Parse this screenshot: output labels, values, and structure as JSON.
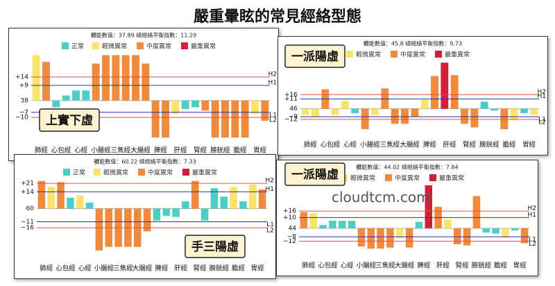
{
  "title": "嚴重暈眩的常見經絡型態",
  "watermark": "cloudtcm.com",
  "chart_data": [
    {
      "type": "bar",
      "subtitle": "體能數值：37.89 總經絡平衡指數：11.29",
      "label": "上實下虛",
      "legend": [
        {
          "name": "正常",
          "color": "#4ecdc4"
        },
        {
          "name": "輕微異常",
          "color": "#f9e36b"
        },
        {
          "name": "中度異常",
          "color": "#f08a3c"
        },
        {
          "name": "嚴重異常",
          "color": "#d0203a"
        }
      ],
      "categories": [
        "肺經",
        null,
        "心包經",
        null,
        "心經",
        null,
        "小腸經",
        null,
        "三焦經",
        null,
        "大腸經",
        null,
        "脾經",
        null,
        "肝經",
        null,
        "腎經",
        null,
        "膀胱經",
        null,
        "膽經",
        null,
        "胃經",
        null
      ],
      "values": [
        65,
        61,
        34,
        41,
        44,
        44,
        60,
        65,
        65,
        65,
        65,
        60,
        16,
        16,
        30,
        33,
        34,
        32,
        16,
        16,
        16,
        16,
        30,
        26
      ],
      "colors": [
        "#f9e36b",
        "#f08a3c",
        "#4ecdc4",
        "#4ecdc4",
        "#4ecdc4",
        "#4ecdc4",
        "#f08a3c",
        "#f08a3c",
        "#f08a3c",
        "#f08a3c",
        "#f08a3c",
        "#f08a3c",
        "#f08a3c",
        "#f08a3c",
        "#f9e36b",
        "#4ecdc4",
        "#4ecdc4",
        "#f08a3c",
        "#f08a3c",
        "#f08a3c",
        "#f08a3c",
        "#f08a3c",
        "#f9e36b",
        "#f08a3c"
      ],
      "ylim": [
        14,
        66
      ],
      "baseline": 38,
      "yticks": [
        {
          "value": 52,
          "label": "+14"
        },
        {
          "value": 47,
          "label": "+9"
        },
        38,
        {
          "value": 31,
          "label": "−7"
        },
        {
          "value": 28,
          "label": "−10"
        }
      ],
      "ref_lines": [
        {
          "value": 52,
          "label": "H2",
          "color": "#e0504a"
        },
        {
          "value": 47,
          "label": "H1",
          "color": "#2233aa"
        },
        {
          "value": 31,
          "label": "L1",
          "color": "#2233aa"
        },
        {
          "value": 28,
          "label": "L2",
          "color": "#e0504a"
        }
      ]
    },
    {
      "type": "bar",
      "subtitle": "體能數值：45.8 總經絡平衡指數：9.73",
      "label": "一派陽虛",
      "legend": [
        {
          "name": "輕微異常",
          "color": "#f9e36b"
        },
        {
          "name": "中度異常",
          "color": "#f08a3c"
        },
        {
          "name": "嚴重異常",
          "color": "#d0203a"
        }
      ],
      "categories": [
        "肺經",
        null,
        "心包經",
        null,
        "心經",
        null,
        "小腸經",
        null,
        "三焦經",
        null,
        "大腸經",
        null,
        "脾經",
        null,
        "肝經",
        null,
        "腎經",
        null,
        "膀胱經",
        null,
        "膽經",
        null,
        "胃經",
        null
      ],
      "values": [
        39,
        37,
        68,
        39,
        55,
        41,
        23,
        39,
        69,
        29,
        29,
        37,
        56,
        83,
        98,
        84,
        29,
        25,
        54,
        44,
        23,
        33,
        41,
        39
      ],
      "colors": [
        "#f9e36b",
        "#f9e36b",
        "#f08a3c",
        "#f9e36b",
        "#f9e36b",
        "#4ecdc4",
        "#f08a3c",
        "#f9e36b",
        "#f08a3c",
        "#f08a3c",
        "#f08a3c",
        "#f08a3c",
        "#f9e36b",
        "#f08a3c",
        "#d0203a",
        "#f08a3c",
        "#f08a3c",
        "#f08a3c",
        "#4ecdc4",
        "#4ecdc4",
        "#f08a3c",
        "#f9e36b",
        "#4ecdc4",
        "#f9e36b"
      ],
      "ylim": [
        16,
        99
      ],
      "baseline": 46,
      "yticks": [
        {
          "value": 62,
          "label": "+16"
        },
        {
          "value": 57,
          "label": "+11"
        },
        46,
        {
          "value": 37,
          "label": "−9"
        },
        {
          "value": 34,
          "label": "−12"
        }
      ],
      "ref_lines": [
        {
          "value": 62,
          "label": "H2",
          "color": "#e0504a"
        },
        {
          "value": 57,
          "label": "H1",
          "color": "#2233aa"
        },
        {
          "value": 37,
          "label": "L1",
          "color": "#2233aa"
        },
        {
          "value": 34,
          "label": "L2",
          "color": "#e0504a"
        }
      ]
    },
    {
      "type": "bar",
      "subtitle": "體能數值：60.22 總經絡平衡指數：7.33",
      "label": "手三陽虛",
      "legend": [
        {
          "name": "正常",
          "color": "#4ecdc4"
        },
        {
          "name": "輕微異常",
          "color": "#f9e36b"
        },
        {
          "name": "中度異常",
          "color": "#f08a3c"
        },
        {
          "name": "嚴重異常",
          "color": "#d0203a"
        }
      ],
      "categories": [
        "肺經",
        null,
        "心包經",
        null,
        "心經",
        null,
        "小腸經",
        null,
        "三焦經",
        null,
        "大腸經",
        null,
        "脾經",
        null,
        "肝經",
        null,
        "腎經",
        null,
        "膀胱經",
        null,
        "膽經",
        null,
        "胃經",
        null
      ],
      "values": [
        83,
        78,
        82,
        69,
        71,
        65,
        25,
        28,
        28,
        28,
        28,
        41,
        50,
        54,
        53,
        66,
        83,
        50,
        77,
        70,
        78,
        66,
        80,
        76
      ],
      "colors": [
        "#f08a3c",
        "#f9e36b",
        "#f08a3c",
        "#4ecdc4",
        "#f9e36b",
        "#4ecdc4",
        "#f08a3c",
        "#f08a3c",
        "#f08a3c",
        "#f08a3c",
        "#f08a3c",
        "#f08a3c",
        "#4ecdc4",
        "#4ecdc4",
        "#4ecdc4",
        "#4ecdc4",
        "#f08a3c",
        "#4ecdc4",
        "#4ecdc4",
        "#4ecdc4",
        "#f9e36b",
        "#4ecdc4",
        "#f9e36b",
        "#f08a3c"
      ],
      "ylim": [
        18,
        84
      ],
      "baseline": 60,
      "yticks": [
        {
          "value": 81,
          "label": "+21"
        },
        {
          "value": 74,
          "label": "+14"
        },
        60,
        {
          "value": 49,
          "label": "−11"
        },
        {
          "value": 44,
          "label": "−16"
        }
      ],
      "ref_lines": [
        {
          "value": 81,
          "label": "H2",
          "color": "#e0504a"
        },
        {
          "value": 74,
          "label": "H1",
          "color": "#2233aa"
        },
        {
          "value": 49,
          "label": "L1",
          "color": "#2233aa"
        },
        {
          "value": 44,
          "label": "L2",
          "color": "#e0504a"
        }
      ]
    },
    {
      "type": "bar",
      "subtitle": "體能數值：44.02 總經絡平衡指數：7.84",
      "label": "一派陽虛",
      "legend": [
        {
          "name": "輕微異常",
          "color": "#f9e36b"
        },
        {
          "name": "中度異常",
          "color": "#f08a3c"
        },
        {
          "name": "嚴重異常",
          "color": "#d0203a"
        }
      ],
      "categories": [
        "肺經",
        null,
        "心包經",
        null,
        "心經",
        null,
        "小腸經",
        null,
        "三焦經",
        null,
        "大腸經",
        null,
        "脾經",
        null,
        "肝經",
        null,
        "腎經",
        null,
        "膀胱經",
        null,
        "膽經",
        null,
        "胃經",
        null
      ],
      "values": [
        59,
        58,
        47,
        51,
        51,
        51,
        27,
        25,
        25,
        26,
        35,
        26,
        50,
        84,
        64,
        52,
        29,
        28,
        74,
        40,
        39,
        35,
        42,
        30
      ],
      "colors": [
        "#f08a3c",
        "#f9e36b",
        "#4ecdc4",
        "#4ecdc4",
        "#4ecdc4",
        "#4ecdc4",
        "#f08a3c",
        "#f08a3c",
        "#f08a3c",
        "#f08a3c",
        "#f9e36b",
        "#f08a3c",
        "#4ecdc4",
        "#d0203a",
        "#f08a3c",
        "#f9e36b",
        "#f08a3c",
        "#f08a3c",
        "#f08a3c",
        "#4ecdc4",
        "#4ecdc4",
        "#f9e36b",
        "#4ecdc4",
        "#f08a3c"
      ],
      "ylim": [
        18,
        84
      ],
      "baseline": 44,
      "yticks": [
        {
          "value": 60,
          "label": "+16"
        },
        {
          "value": 54,
          "label": "+10"
        },
        44,
        {
          "value": 36,
          "label": "−8"
        },
        {
          "value": 32,
          "label": "−12"
        }
      ],
      "ref_lines": [
        {
          "value": 60,
          "label": "H2",
          "color": "#e0504a"
        },
        {
          "value": 54,
          "label": "H1",
          "color": "#2233aa"
        },
        {
          "value": 36,
          "label": "L1",
          "color": "#2233aa"
        },
        {
          "value": 32,
          "label": "L2",
          "color": "#e0504a"
        }
      ]
    }
  ]
}
